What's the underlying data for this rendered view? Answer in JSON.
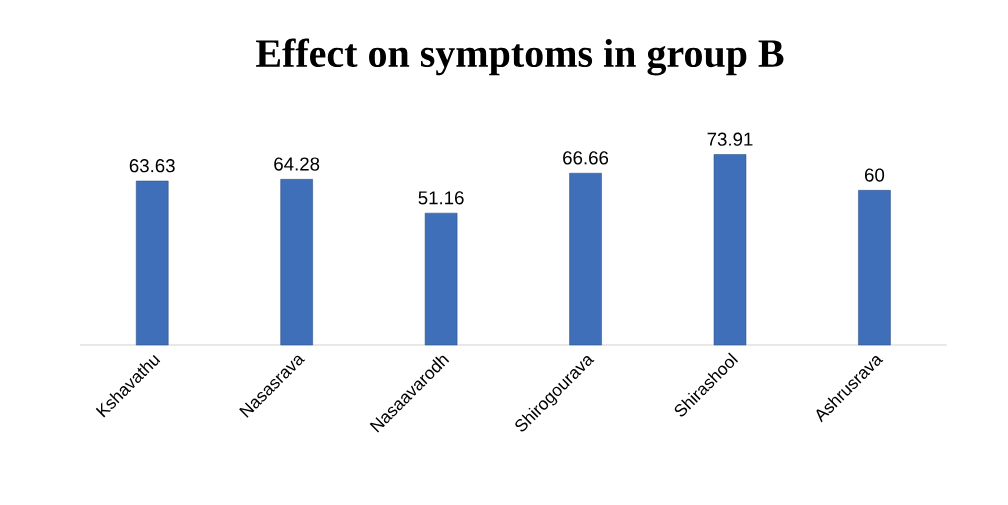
{
  "chart_data": {
    "type": "bar",
    "title": "Effect on symptoms in group B",
    "categories": [
      "Kshavathu",
      "Nasasrava",
      "Nasaavarodh",
      "Shirogourava",
      "Shirashool",
      "Ashrusrava"
    ],
    "values": [
      63.63,
      64.28,
      51.16,
      66.66,
      73.91,
      60
    ],
    "color": "#3f6fb8",
    "data_labels": true
  }
}
